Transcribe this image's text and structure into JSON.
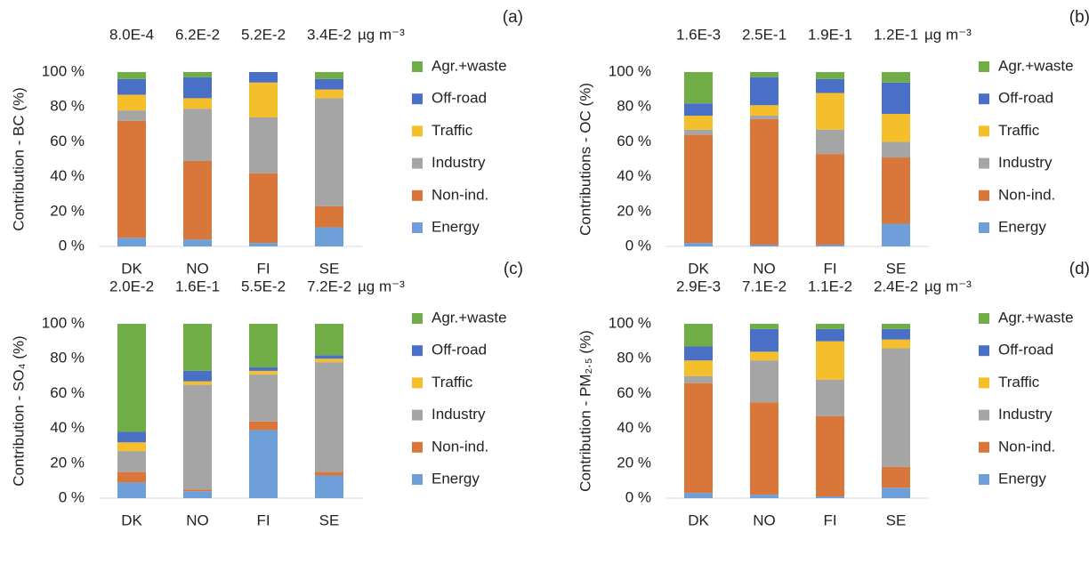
{
  "chart_data": [
    {
      "type": "bar",
      "stacked": true,
      "panel_label": "(a)",
      "ylabel": "Contribution - BC (%)",
      "unit": "µg m⁻³",
      "categories": [
        "DK",
        "NO",
        "FI",
        "SE"
      ],
      "value_labels": [
        "8.0E-4",
        "6.2E-2",
        "5.2E-2",
        "3.4E-2"
      ],
      "ylim": [
        0,
        100
      ],
      "yticks": [
        {
          "value": 0,
          "label": "0 %"
        },
        {
          "value": 20,
          "label": "20 %"
        },
        {
          "value": 40,
          "label": "40 %"
        },
        {
          "value": 60,
          "label": "60 %"
        },
        {
          "value": 80,
          "label": "80 %"
        },
        {
          "value": 100,
          "label": "100 %"
        }
      ],
      "series": [
        {
          "name": "Energy",
          "color": "#6f9fd8",
          "values": [
            5,
            4,
            2,
            11
          ]
        },
        {
          "name": "Non-ind.",
          "color": "#d9773a",
          "values": [
            67,
            45,
            40,
            12
          ]
        },
        {
          "name": "Industry",
          "color": "#a5a5a5",
          "values": [
            6,
            30,
            32,
            62
          ]
        },
        {
          "name": "Traffic",
          "color": "#f4bf2a",
          "values": [
            9,
            6,
            20,
            5
          ]
        },
        {
          "name": "Off-road",
          "color": "#4a6fc7",
          "values": [
            9,
            12,
            6,
            6
          ]
        },
        {
          "name": "Agr.+waste",
          "color": "#70ad47",
          "values": [
            4,
            3,
            0,
            4
          ]
        }
      ]
    },
    {
      "type": "bar",
      "stacked": true,
      "panel_label": "(b)",
      "ylabel": "Contributions - OC (%)",
      "unit": "µg m⁻³",
      "categories": [
        "DK",
        "NO",
        "FI",
        "SE"
      ],
      "value_labels": [
        "1.6E-3",
        "2.5E-1",
        "1.9E-1",
        "1.2E-1"
      ],
      "ylim": [
        0,
        100
      ],
      "yticks": [
        {
          "value": 0,
          "label": "0 %"
        },
        {
          "value": 20,
          "label": "20 %"
        },
        {
          "value": 40,
          "label": "40 %"
        },
        {
          "value": 60,
          "label": "60 %"
        },
        {
          "value": 80,
          "label": "80 %"
        },
        {
          "value": 100,
          "label": "100 %"
        }
      ],
      "series": [
        {
          "name": "Energy",
          "color": "#6f9fd8",
          "values": [
            2,
            1,
            1,
            13
          ]
        },
        {
          "name": "Non-ind.",
          "color": "#d9773a",
          "values": [
            62,
            72,
            52,
            38
          ]
        },
        {
          "name": "Industry",
          "color": "#a5a5a5",
          "values": [
            3,
            2,
            14,
            9
          ]
        },
        {
          "name": "Traffic",
          "color": "#f4bf2a",
          "values": [
            8,
            6,
            21,
            16
          ]
        },
        {
          "name": "Off-road",
          "color": "#4a6fc7",
          "values": [
            7,
            16,
            8,
            18
          ]
        },
        {
          "name": "Agr.+waste",
          "color": "#70ad47",
          "values": [
            18,
            3,
            4,
            6
          ]
        }
      ]
    },
    {
      "type": "bar",
      "stacked": true,
      "panel_label": "(c)",
      "ylabel": "Contribution - SO₄ (%)",
      "unit": "µg m⁻³",
      "categories": [
        "DK",
        "NO",
        "FI",
        "SE"
      ],
      "value_labels": [
        "2.0E-2",
        "1.6E-1",
        "5.5E-2",
        "7.2E-2"
      ],
      "ylim": [
        0,
        100
      ],
      "yticks": [
        {
          "value": 0,
          "label": "0 %"
        },
        {
          "value": 20,
          "label": "20 %"
        },
        {
          "value": 40,
          "label": "40 %"
        },
        {
          "value": 60,
          "label": "60 %"
        },
        {
          "value": 80,
          "label": "80 %"
        },
        {
          "value": 100,
          "label": "100 %"
        }
      ],
      "series": [
        {
          "name": "Energy",
          "color": "#6f9fd8",
          "values": [
            9,
            4,
            39,
            13
          ]
        },
        {
          "name": "Non-ind.",
          "color": "#d9773a",
          "values": [
            6,
            1,
            5,
            2
          ]
        },
        {
          "name": "Industry",
          "color": "#a5a5a5",
          "values": [
            12,
            60,
            27,
            63
          ]
        },
        {
          "name": "Traffic",
          "color": "#f4bf2a",
          "values": [
            5,
            2,
            2,
            2
          ]
        },
        {
          "name": "Off-road",
          "color": "#4a6fc7",
          "values": [
            6,
            6,
            2,
            2
          ]
        },
        {
          "name": "Agr.+waste",
          "color": "#70ad47",
          "values": [
            62,
            27,
            25,
            18
          ]
        }
      ]
    },
    {
      "type": "bar",
      "stacked": true,
      "panel_label": "(d)",
      "ylabel": "Contribution - PM₂.₅ (%)",
      "unit": "µg m⁻³",
      "categories": [
        "DK",
        "NO",
        "FI",
        "SE"
      ],
      "value_labels": [
        "2.9E-3",
        "7.1E-2",
        "1.1E-2",
        "2.4E-2"
      ],
      "ylim": [
        0,
        100
      ],
      "yticks": [
        {
          "value": 0,
          "label": "0 %"
        },
        {
          "value": 20,
          "label": "20 %"
        },
        {
          "value": 40,
          "label": "40 %"
        },
        {
          "value": 60,
          "label": "60 %"
        },
        {
          "value": 80,
          "label": "80 %"
        },
        {
          "value": 100,
          "label": "100 %"
        }
      ],
      "series": [
        {
          "name": "Energy",
          "color": "#6f9fd8",
          "values": [
            3,
            2,
            1,
            6
          ]
        },
        {
          "name": "Non-ind.",
          "color": "#d9773a",
          "values": [
            63,
            53,
            46,
            12
          ]
        },
        {
          "name": "Industry",
          "color": "#a5a5a5",
          "values": [
            4,
            24,
            21,
            68
          ]
        },
        {
          "name": "Traffic",
          "color": "#f4bf2a",
          "values": [
            9,
            5,
            22,
            5
          ]
        },
        {
          "name": "Off-road",
          "color": "#4a6fc7",
          "values": [
            8,
            13,
            7,
            6
          ]
        },
        {
          "name": "Agr.+waste",
          "color": "#70ad47",
          "values": [
            13,
            3,
            3,
            3
          ]
        }
      ]
    }
  ]
}
